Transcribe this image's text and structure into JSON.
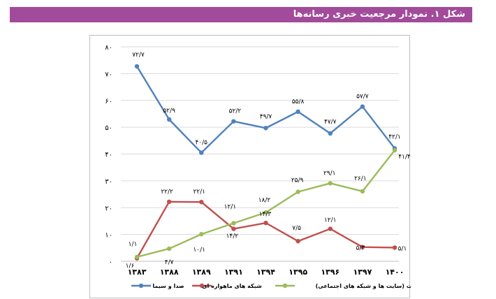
{
  "header": {
    "title": "شکل ۱. نمودار مرجعیت خبری رسانه‌ها"
  },
  "chart_data": {
    "type": "line",
    "title": "",
    "xlabel": "",
    "ylabel": "",
    "categories": [
      "۱۳۸۳",
      "۱۳۸۸",
      "۱۳۸۹",
      "۱۳۹۱",
      "۱۳۹۴",
      "۱۳۹۵",
      "۱۳۹۶",
      "۱۳۹۷",
      "۱۴۰۰"
    ],
    "yticks": [
      "۰",
      "۱۰",
      "۲۰",
      "۳۰",
      "۴۰",
      "۵۰",
      "۶۰",
      "۷۰",
      "۸۰"
    ],
    "ylim": [
      0,
      80
    ],
    "grid": true,
    "legend_position": "bottom",
    "series": [
      {
        "name": "صدا و سیما",
        "color": "#4f81bd",
        "values": [
          72.7,
          52.9,
          40.5,
          52.2,
          49.7,
          55.8,
          47.7,
          57.7,
          42.1
        ],
        "labels": [
          "۷۲/۷",
          "۵۲/۹",
          "۴۰/۵",
          "۵۲/۲",
          "۴۹/۷",
          "۵۵/۸",
          "۴۷/۷",
          "۵۷/۷",
          "۴۲/۱"
        ]
      },
      {
        "name": "شبکه های ماهواره ای",
        "color": "#c0504d",
        "values": [
          1.1,
          22.2,
          22.1,
          12.1,
          14.3,
          7.5,
          12.1,
          5.3,
          5.1
        ],
        "labels": [
          "۱/۱",
          "۲۲/۲",
          "۲۲/۱",
          "۱۲/۱",
          "۱۴/۳",
          "۷/۵",
          "۱۲/۱",
          "۵/۳",
          "۵/۱"
        ]
      },
      {
        "name": "اینترنت (سایت ها و شبکه های اجتماعی)",
        "color": "#9bbb59",
        "values": [
          1.6,
          4.7,
          10.1,
          14.2,
          18.2,
          25.9,
          29.1,
          26.1,
          41.4
        ],
        "labels": [
          "۱/۶",
          "۴/۷",
          "۱۰/۱",
          "۱۴/۲",
          "۱۸/۲",
          "۲۵/۹",
          "۲۹/۱",
          "۲۶/۱",
          "۴۱/۴"
        ]
      }
    ]
  }
}
